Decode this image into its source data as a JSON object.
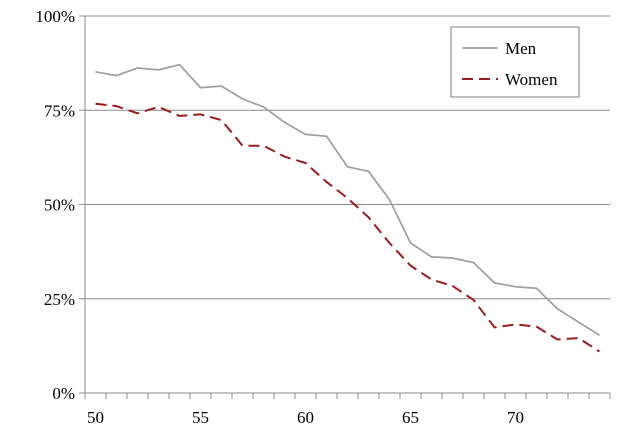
{
  "chart_data": {
    "type": "line",
    "x": [
      50,
      51,
      52,
      53,
      54,
      55,
      56,
      57,
      58,
      59,
      60,
      61,
      62,
      63,
      64,
      65,
      66,
      67,
      68,
      69,
      70,
      71,
      72,
      73,
      74
    ],
    "series": [
      {
        "name": "Men",
        "color": "#a0a0a0",
        "dash": "solid",
        "values": [
          85.2,
          84.2,
          86.2,
          85.7,
          87.1,
          81.0,
          81.4,
          78.0,
          75.9,
          71.8,
          68.6,
          68.1,
          60.0,
          58.8,
          51.3,
          39.8,
          36.1,
          35.8,
          34.6,
          29.2,
          28.2,
          27.8,
          22.3,
          18.8,
          15.3
        ]
      },
      {
        "name": "Women",
        "color": "#9b1c1c",
        "dash": "dashed",
        "values": [
          76.7,
          76.1,
          74.2,
          75.9,
          73.5,
          73.9,
          72.4,
          65.6,
          65.6,
          62.7,
          61.0,
          56.0,
          51.7,
          46.6,
          39.8,
          33.8,
          30.1,
          28.4,
          24.7,
          17.4,
          18.2,
          17.6,
          14.2,
          14.6,
          11.0
        ]
      }
    ],
    "ylim": [
      0,
      100
    ],
    "yticks": [
      0,
      25,
      50,
      75,
      100
    ],
    "ytick_labels": [
      "0%",
      "25%",
      "50%",
      "75%",
      "100%"
    ],
    "xlim": [
      49.5,
      74.5
    ],
    "xticks": [
      50,
      55,
      60,
      65,
      70
    ],
    "xtick_labels": [
      "50",
      "55",
      "60",
      "65",
      "70"
    ],
    "grid": "horizontal",
    "legend_position": "top-right"
  }
}
